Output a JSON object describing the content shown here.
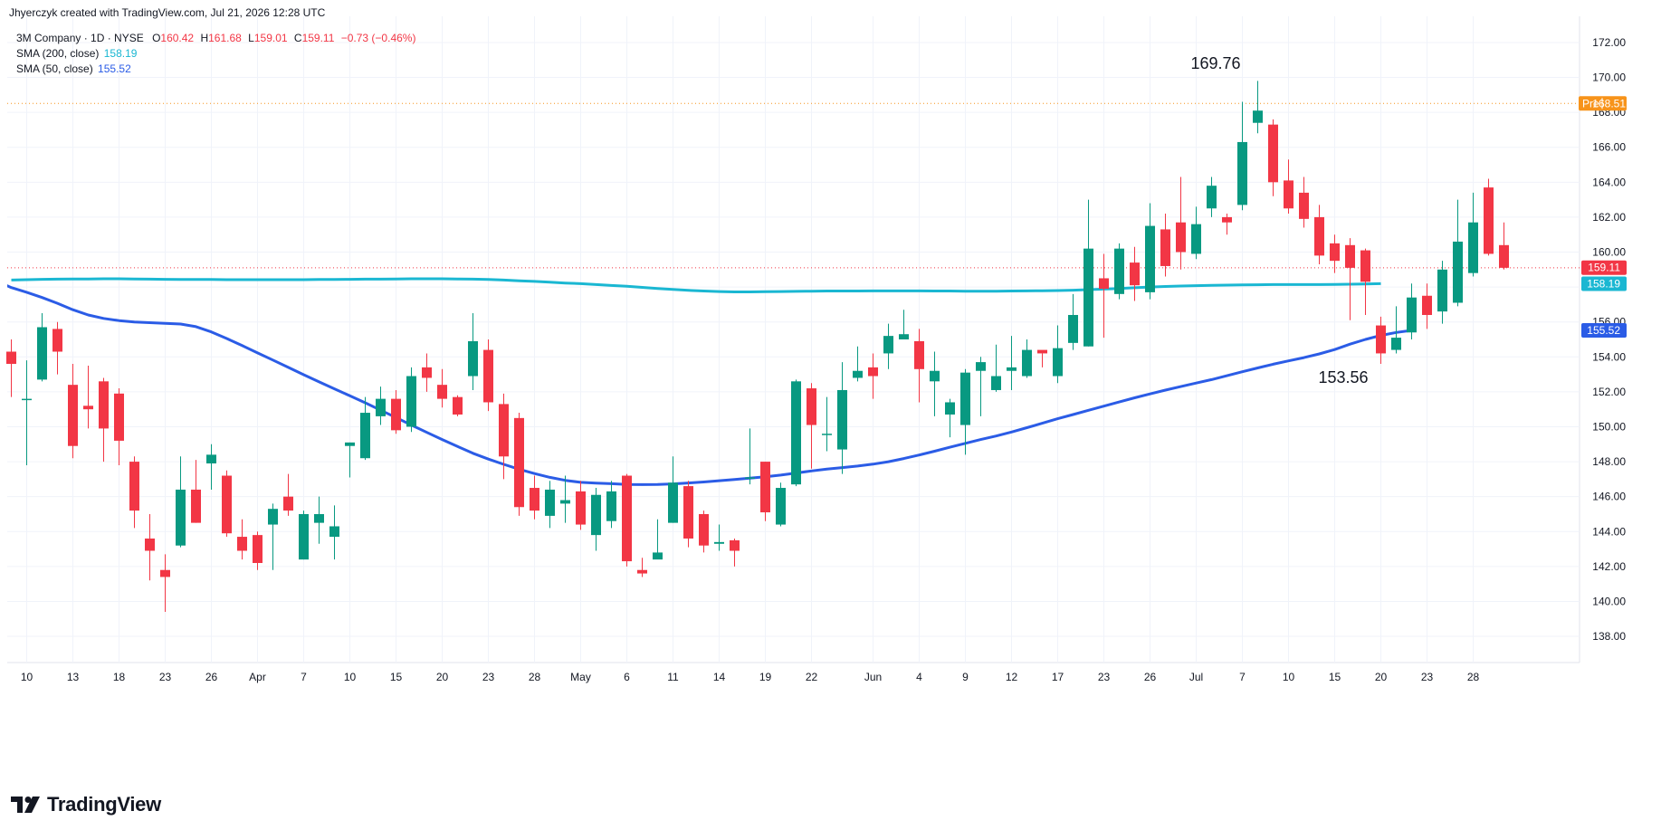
{
  "header": {
    "created_by": "Jhyerczyk created with TradingView.com, Jul 21, 2026 12:28 UTC"
  },
  "legend": {
    "symbol": "3M Company · 1D · NYSE",
    "ohlc": {
      "o_label": "O",
      "o": "160.42",
      "h_label": "H",
      "h": "161.68",
      "l_label": "L",
      "l": "159.01",
      "c_label": "C",
      "c": "159.11",
      "change": "−0.73 (−0.46%)"
    },
    "sma200_label": "SMA (200, close)",
    "sma200_value": "158.19",
    "sma50_label": "SMA (50, close)",
    "sma50_value": "155.52"
  },
  "brand": {
    "name": "TradingView"
  },
  "colors": {
    "up": "#089981",
    "down": "#f23645",
    "sma200": "#1ab7d2",
    "sma50": "#2b5ce6",
    "premarket": "#f7931a",
    "grid": "#f0f3fa",
    "text": "#131722"
  },
  "chart_data": {
    "type": "candlestick",
    "ylim": [
      136.5,
      173.5
    ],
    "yticks": [
      138,
      140,
      142,
      144,
      146,
      148,
      150,
      152,
      154,
      156,
      158,
      160,
      162,
      164,
      166,
      168,
      170,
      172
    ],
    "xticks": [
      {
        "i": 1,
        "label": "10"
      },
      {
        "i": 4,
        "label": "13"
      },
      {
        "i": 7,
        "label": "18"
      },
      {
        "i": 10,
        "label": "23"
      },
      {
        "i": 13,
        "label": "26"
      },
      {
        "i": 16,
        "label": "Apr"
      },
      {
        "i": 19,
        "label": "7"
      },
      {
        "i": 22,
        "label": "10"
      },
      {
        "i": 25,
        "label": "15"
      },
      {
        "i": 28,
        "label": "20"
      },
      {
        "i": 31,
        "label": "23"
      },
      {
        "i": 34,
        "label": "28"
      },
      {
        "i": 37,
        "label": "May"
      },
      {
        "i": 40,
        "label": "6"
      },
      {
        "i": 43,
        "label": "11"
      },
      {
        "i": 46,
        "label": "14"
      },
      {
        "i": 49,
        "label": "19"
      },
      {
        "i": 52,
        "label": "22"
      },
      {
        "i": 56,
        "label": "Jun"
      },
      {
        "i": 59,
        "label": "4"
      },
      {
        "i": 62,
        "label": "9"
      },
      {
        "i": 65,
        "label": "12"
      },
      {
        "i": 68,
        "label": "17"
      },
      {
        "i": 71,
        "label": "23"
      },
      {
        "i": 74,
        "label": "26"
      },
      {
        "i": 77,
        "label": "Jul"
      },
      {
        "i": 80,
        "label": "7"
      },
      {
        "i": 83,
        "label": "10"
      },
      {
        "i": 86,
        "label": "15"
      },
      {
        "i": 89,
        "label": "20"
      },
      {
        "i": 92,
        "label": "23"
      },
      {
        "i": 95,
        "label": "28"
      }
    ],
    "candles": [
      [
        154.3,
        153.6,
        155.0,
        151.7
      ],
      [
        151.6,
        151.6,
        153.8,
        147.8
      ],
      [
        152.7,
        155.7,
        156.5,
        152.6
      ],
      [
        155.6,
        154.3,
        156.0,
        153.0
      ],
      [
        152.4,
        148.9,
        153.6,
        148.2
      ],
      [
        151.2,
        151.0,
        153.5,
        149.9
      ],
      [
        152.6,
        149.9,
        152.8,
        148.0
      ],
      [
        151.9,
        149.2,
        152.2,
        147.8
      ],
      [
        148.0,
        145.2,
        148.3,
        144.2
      ],
      [
        143.6,
        142.9,
        145.0,
        141.2
      ],
      [
        141.8,
        141.4,
        142.7,
        139.4
      ],
      [
        143.2,
        146.4,
        148.3,
        143.1
      ],
      [
        146.4,
        144.5,
        148.1,
        144.5
      ],
      [
        147.9,
        148.4,
        149.0,
        146.4
      ],
      [
        147.2,
        143.9,
        147.5,
        143.7
      ],
      [
        143.7,
        142.9,
        144.7,
        142.4
      ],
      [
        143.8,
        142.2,
        144.0,
        141.8
      ],
      [
        144.4,
        145.3,
        145.6,
        141.8
      ],
      [
        146.0,
        145.2,
        147.3,
        144.9
      ],
      [
        142.4,
        145.0,
        145.2,
        142.4
      ],
      [
        144.5,
        145.0,
        146.0,
        143.3
      ],
      [
        143.7,
        144.3,
        145.5,
        142.4
      ],
      [
        148.9,
        149.1,
        149.1,
        147.1
      ],
      [
        148.2,
        150.8,
        151.7,
        148.1
      ],
      [
        150.6,
        151.6,
        152.3,
        150.1
      ],
      [
        151.6,
        149.8,
        152.1,
        149.6
      ],
      [
        150.0,
        152.9,
        153.4,
        149.7
      ],
      [
        153.4,
        152.8,
        154.2,
        152.0
      ],
      [
        152.4,
        151.6,
        153.3,
        151.1
      ],
      [
        151.7,
        150.7,
        151.8,
        150.6
      ],
      [
        152.9,
        154.9,
        156.5,
        152.1
      ],
      [
        154.4,
        151.4,
        155.0,
        150.9
      ],
      [
        151.3,
        148.3,
        151.9,
        147.0
      ],
      [
        150.5,
        145.4,
        150.8,
        144.9
      ],
      [
        146.5,
        145.2,
        147.2,
        144.7
      ],
      [
        144.9,
        146.4,
        146.9,
        144.2
      ],
      [
        145.6,
        145.8,
        147.2,
        144.5
      ],
      [
        146.3,
        144.4,
        146.9,
        144.1
      ],
      [
        143.8,
        146.1,
        146.5,
        142.9
      ],
      [
        144.6,
        146.3,
        146.9,
        144.2
      ],
      [
        147.2,
        142.3,
        147.3,
        142.0
      ],
      [
        141.8,
        141.6,
        142.5,
        141.4
      ],
      [
        142.4,
        142.8,
        144.7,
        142.6
      ],
      [
        144.5,
        146.8,
        148.3,
        144.5
      ],
      [
        146.6,
        143.6,
        146.9,
        143.1
      ],
      [
        145.0,
        143.2,
        145.2,
        142.8
      ],
      [
        143.3,
        143.4,
        144.4,
        142.9
      ],
      [
        143.5,
        142.9,
        143.6,
        142.0
      ],
      [
        147.1,
        147.1,
        149.9,
        146.7
      ],
      [
        148.0,
        145.1,
        148.0,
        144.6
      ],
      [
        144.4,
        146.5,
        146.8,
        144.3
      ],
      [
        146.7,
        152.6,
        152.7,
        146.6
      ],
      [
        152.2,
        150.1,
        152.5,
        147.6
      ],
      [
        149.6,
        149.6,
        151.7,
        148.6
      ],
      [
        148.7,
        152.1,
        153.7,
        147.3
      ],
      [
        152.8,
        153.2,
        154.6,
        152.6
      ],
      [
        153.4,
        152.9,
        154.2,
        151.6
      ],
      [
        154.2,
        155.2,
        155.9,
        153.3
      ],
      [
        155.0,
        155.3,
        156.7,
        155.0
      ],
      [
        154.9,
        153.3,
        155.6,
        151.4
      ],
      [
        152.6,
        153.2,
        154.3,
        150.6
      ],
      [
        150.7,
        151.4,
        151.6,
        149.4
      ],
      [
        150.1,
        153.1,
        153.3,
        148.4
      ],
      [
        153.2,
        153.7,
        154.0,
        150.6
      ],
      [
        152.1,
        152.9,
        154.7,
        152.0
      ],
      [
        153.2,
        153.4,
        155.2,
        152.1
      ],
      [
        152.9,
        154.4,
        155.0,
        152.8
      ],
      [
        154.4,
        154.2,
        154.2,
        153.4
      ],
      [
        152.9,
        154.5,
        155.8,
        152.5
      ],
      [
        154.8,
        156.4,
        157.6,
        154.4
      ],
      [
        154.6,
        160.2,
        163.0,
        154.6
      ],
      [
        158.5,
        157.9,
        159.9,
        155.1
      ],
      [
        157.6,
        160.2,
        160.5,
        157.3
      ],
      [
        159.4,
        158.1,
        160.3,
        157.2
      ],
      [
        157.7,
        161.5,
        162.8,
        157.3
      ],
      [
        161.3,
        159.2,
        162.2,
        158.6
      ],
      [
        161.7,
        160.0,
        164.3,
        159.0
      ],
      [
        159.9,
        161.6,
        162.6,
        159.6
      ],
      [
        162.5,
        163.8,
        164.3,
        162.0
      ],
      [
        162.0,
        161.7,
        162.2,
        161.0
      ],
      [
        162.7,
        166.3,
        168.6,
        162.4
      ],
      [
        167.4,
        168.1,
        169.8,
        166.8
      ],
      [
        167.3,
        164.0,
        167.6,
        163.2
      ],
      [
        164.1,
        162.5,
        165.3,
        162.2
      ],
      [
        163.4,
        161.9,
        164.3,
        161.4
      ],
      [
        162.0,
        159.8,
        162.7,
        159.3
      ],
      [
        160.5,
        159.5,
        161.0,
        158.8
      ],
      [
        160.4,
        159.1,
        160.8,
        156.1
      ],
      [
        160.1,
        158.3,
        160.2,
        156.4
      ],
      [
        155.8,
        154.2,
        156.3,
        153.6
      ],
      [
        154.4,
        155.1,
        156.9,
        154.2
      ],
      [
        155.4,
        157.4,
        158.2,
        155.0
      ],
      [
        157.5,
        156.4,
        158.2,
        155.6
      ],
      [
        156.6,
        159.0,
        159.5,
        155.9
      ],
      [
        157.1,
        160.6,
        163.0,
        156.9
      ],
      [
        158.8,
        161.7,
        163.4,
        158.6
      ],
      [
        163.7,
        159.9,
        164.2,
        159.8
      ],
      [
        160.4,
        159.1,
        161.7,
        159.0
      ]
    ],
    "series": [
      {
        "name": "SMA (200, close)",
        "values": [
          158.4,
          158.42,
          158.44,
          158.45,
          158.46,
          158.46,
          158.47,
          158.47,
          158.46,
          158.45,
          158.44,
          158.43,
          158.43,
          158.43,
          158.42,
          158.42,
          158.42,
          158.42,
          158.42,
          158.42,
          158.43,
          158.43,
          158.44,
          158.45,
          158.45,
          158.46,
          158.47,
          158.47,
          158.47,
          158.46,
          158.45,
          158.43,
          158.4,
          158.36,
          158.32,
          158.28,
          158.23,
          158.19,
          158.14,
          158.09,
          158.04,
          157.98,
          157.92,
          157.86,
          157.81,
          157.77,
          157.74,
          157.72,
          157.72,
          157.73,
          157.74,
          157.75,
          157.76,
          157.77,
          157.77,
          157.77,
          157.78,
          157.78,
          157.78,
          157.78,
          157.77,
          157.77,
          157.76,
          157.76,
          157.76,
          157.77,
          157.78,
          157.79,
          157.8,
          157.82,
          157.85,
          157.88,
          157.92,
          157.96,
          158.0,
          158.03,
          158.06,
          158.08,
          158.1,
          158.11,
          158.12,
          158.13,
          158.14,
          158.14,
          158.14,
          158.14,
          158.15,
          158.16,
          158.17,
          158.19
        ]
      },
      {
        "name": "SMA (50, close)",
        "values": [
          163.45,
          163.33,
          163.2,
          163.05,
          162.88,
          162.68,
          162.45,
          162.18,
          161.87,
          161.52,
          161.17,
          160.85,
          160.55,
          160.23,
          159.85,
          159.4,
          158.88,
          158.35,
          157.97,
          157.7,
          157.4,
          157.07,
          156.7,
          156.4,
          156.2,
          156.08,
          156.0,
          155.96,
          155.92,
          155.88,
          155.73,
          155.43,
          155.05,
          154.65,
          154.23,
          153.82,
          153.4,
          152.98,
          152.57,
          152.17,
          151.77,
          151.37,
          150.95,
          150.53,
          150.1,
          149.68,
          149.27,
          148.87,
          148.48,
          148.15,
          147.85,
          147.57,
          147.32,
          147.1,
          146.93,
          146.82,
          146.77,
          146.74,
          146.7,
          146.69,
          146.7,
          146.73,
          146.78,
          146.84,
          146.91,
          146.98,
          147.06,
          147.14,
          147.23,
          147.35,
          147.47,
          147.58,
          147.66,
          147.75,
          147.86,
          148.0,
          148.18,
          148.38,
          148.6,
          148.83,
          149.05,
          149.27,
          149.47,
          149.7,
          149.95,
          150.2,
          150.46,
          150.7,
          150.94,
          151.18,
          151.42,
          151.66,
          151.88,
          152.1,
          152.3,
          152.5,
          152.7,
          152.92,
          153.15,
          153.37,
          153.58,
          153.77,
          153.96,
          154.17,
          154.42,
          154.73,
          155.0,
          155.23,
          155.4,
          155.52
        ]
      }
    ],
    "sma200_start_index": 0,
    "sma50_start_index": -18,
    "premarket": {
      "label": "Pre",
      "value": 168.51
    },
    "price_labels": [
      {
        "value": 159.11,
        "text": "159.11"
      },
      {
        "value": 158.19,
        "text": "158.19"
      },
      {
        "value": 155.52,
        "text": "155.52"
      }
    ],
    "annotations": [
      {
        "text": "169.76",
        "value": 169.76,
        "i": 81
      },
      {
        "text": "153.56",
        "value": 153.56,
        "i": 80
      }
    ],
    "grid": true
  }
}
